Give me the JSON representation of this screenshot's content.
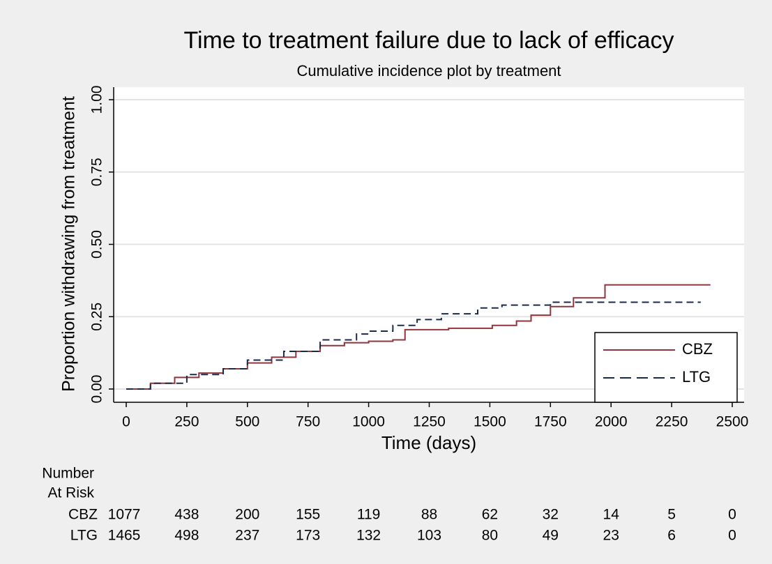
{
  "chart_data": {
    "type": "line",
    "drawstyle": "steps-post",
    "title": "Time to treatment failure due to lack of efficacy",
    "subtitle": "Cumulative incidence plot by treatment",
    "x_label": "Time (days)",
    "y_label": "Proportion withdrawing from treatment",
    "xlim": [
      0,
      2500
    ],
    "ylim": [
      0,
      1
    ],
    "xticks": [
      0,
      250,
      500,
      750,
      1000,
      1250,
      1500,
      1750,
      2000,
      2250,
      2500
    ],
    "yticks": [
      {
        "value": 0,
        "label": "0.00"
      },
      {
        "value": 0.25,
        "label": "0.25"
      },
      {
        "value": 0.5,
        "label": "0.50"
      },
      {
        "value": 0.75,
        "label": "0.75"
      },
      {
        "value": 1,
        "label": "1.00"
      }
    ],
    "grid": true,
    "legend": "lower right",
    "series": [
      {
        "name": "CBZ",
        "color": "#90353b",
        "dash": "solid",
        "x": [
          0,
          100,
          200,
          300,
          400,
          500,
          600,
          700,
          800,
          900,
          1000,
          1100,
          1150,
          1330,
          1510,
          1610,
          1670,
          1750,
          1845,
          1975,
          2410
        ],
        "values": [
          0,
          0.02,
          0.04,
          0.055,
          0.07,
          0.09,
          0.11,
          0.13,
          0.15,
          0.16,
          0.165,
          0.17,
          0.205,
          0.21,
          0.22,
          0.235,
          0.255,
          0.285,
          0.315,
          0.36,
          0.36
        ]
      },
      {
        "name": "LTG",
        "color": "#1a2a4a",
        "dash": "dashed",
        "x": [
          0,
          100,
          250,
          400,
          500,
          650,
          800,
          950,
          1000,
          1100,
          1200,
          1300,
          1450,
          1550,
          1750,
          2370
        ],
        "values": [
          0,
          0.02,
          0.05,
          0.07,
          0.1,
          0.13,
          0.17,
          0.19,
          0.2,
          0.22,
          0.24,
          0.26,
          0.28,
          0.29,
          0.3,
          0.3
        ]
      }
    ],
    "risk_table": {
      "label": [
        "Number",
        "At Risk"
      ],
      "rows": [
        {
          "name": "CBZ",
          "counts": [
            1077,
            438,
            200,
            155,
            119,
            88,
            62,
            32,
            14,
            5,
            0
          ]
        },
        {
          "name": "LTG",
          "counts": [
            1465,
            498,
            237,
            173,
            132,
            103,
            80,
            49,
            23,
            6,
            0
          ]
        }
      ]
    }
  }
}
